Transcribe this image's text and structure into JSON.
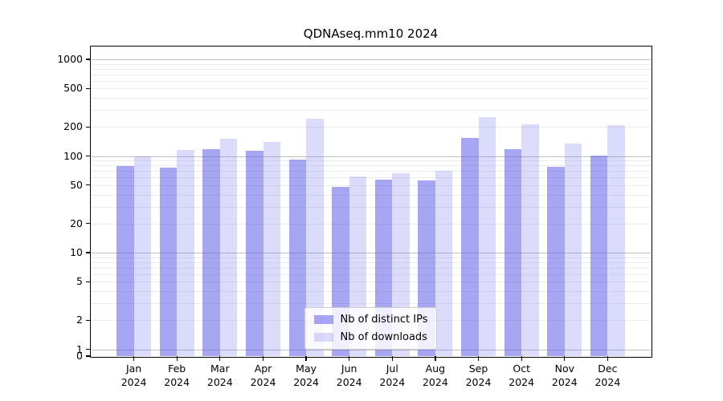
{
  "chart_data": {
    "type": "bar",
    "title": "QDNAseq.mm10 2024",
    "categories": [
      "Jan 2024",
      "Feb 2024",
      "Mar 2024",
      "Apr 2024",
      "May 2024",
      "Jun 2024",
      "Jul 2024",
      "Aug 2024",
      "Sep 2024",
      "Oct 2024",
      "Nov 2024",
      "Dec 2024"
    ],
    "series": [
      {
        "name": "Nb of distinct IPs",
        "color": "rgba(92,92,232,0.55)",
        "values": [
          79,
          76,
          118,
          113,
          92,
          48,
          57,
          56,
          154,
          117,
          77,
          102
        ]
      },
      {
        "name": "Nb of downloads",
        "color": "rgba(112,112,238,0.25)",
        "values": [
          100,
          115,
          150,
          140,
          243,
          61,
          67,
          70,
          251,
          212,
          135,
          208
        ]
      }
    ],
    "xlabel": "",
    "ylabel": "",
    "yscale": "log (linear segment between 0 and 1)",
    "yticks": [
      1000,
      500,
      200,
      100,
      50,
      20,
      10,
      5,
      2,
      1,
      0
    ],
    "ylim": [
      0,
      1350
    ],
    "grid": "minor log gridlines light gray, decade lines darker gray",
    "legend_position": "lower center"
  },
  "colors": {
    "bar_distinct_ips_on_white": "#a4a4f0",
    "bar_downloads_on_white": "#dcdcf9",
    "grid_major": "#bfbfbf",
    "grid_minor": "#ececec",
    "frame": "#000000",
    "background": "#ffffff"
  }
}
